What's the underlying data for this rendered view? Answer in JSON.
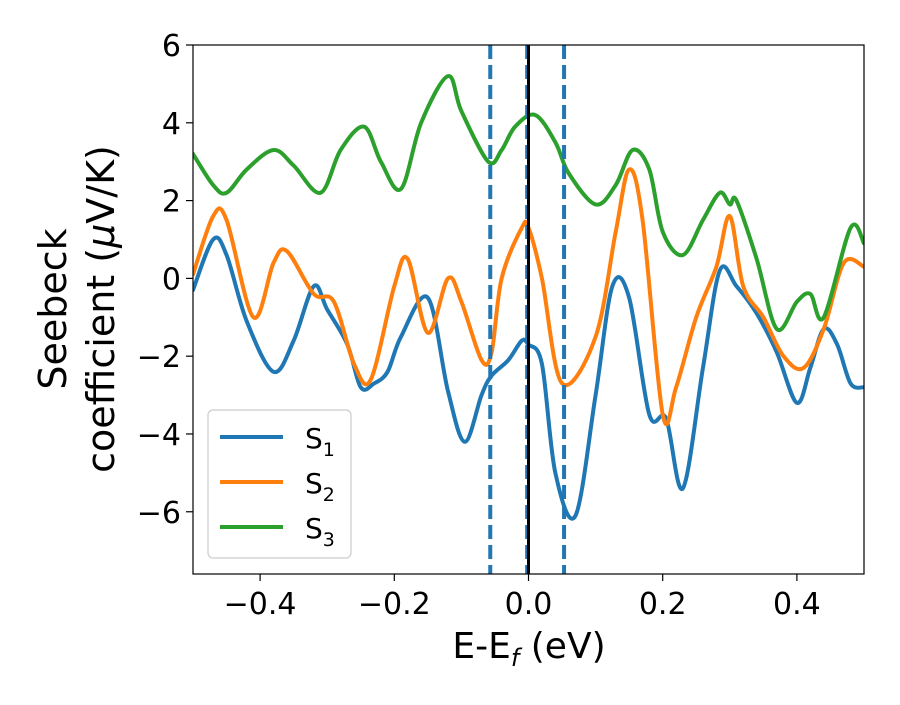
{
  "chart_data": {
    "type": "line",
    "xlabel_main": "E-E",
    "xlabel_sub": "f",
    "xlabel_unit": " (eV)",
    "ylabel_line1": "Seebeck",
    "ylabel_line2": "coefficient  (",
    "ylabel_mu": "μ",
    "ylabel_unit": "V/K)",
    "xlim": [
      -0.5,
      0.5
    ],
    "ylim": [
      -7.6,
      6.0
    ],
    "xticks": [
      -0.4,
      -0.2,
      0.0,
      0.2,
      0.4
    ],
    "xtick_labels": [
      "−0.4",
      "−0.2",
      "0.0",
      "0.2",
      "0.4"
    ],
    "yticks": [
      -6,
      -4,
      -2,
      0,
      2,
      4,
      6
    ],
    "ytick_labels": [
      "−6",
      "−4",
      "−2",
      "0",
      "2",
      "4",
      "6"
    ],
    "grid": false,
    "legend_position": "lower-left",
    "vlines": [
      {
        "x": -0.057,
        "style": "dashed",
        "color": "#1f77b4"
      },
      {
        "x": -0.002,
        "style": "dashed",
        "color": "#1f77b4"
      },
      {
        "x": 0.053,
        "style": "dashed",
        "color": "#1f77b4"
      },
      {
        "x": 0.0,
        "style": "solid",
        "color": "#000000"
      }
    ],
    "series": [
      {
        "name": "S",
        "sub": "1",
        "color": "#1f77b4",
        "x": [
          -0.5,
          -0.47,
          -0.45,
          -0.42,
          -0.38,
          -0.35,
          -0.32,
          -0.3,
          -0.27,
          -0.25,
          -0.23,
          -0.21,
          -0.19,
          -0.15,
          -0.12,
          -0.095,
          -0.07,
          -0.055,
          -0.03,
          -0.01,
          0.0,
          0.02,
          0.04,
          0.07,
          0.1,
          0.125,
          0.15,
          0.18,
          0.205,
          0.23,
          0.26,
          0.285,
          0.31,
          0.34,
          0.37,
          0.4,
          0.42,
          0.44,
          0.46,
          0.48,
          0.5
        ],
        "y": [
          -0.3,
          1.0,
          0.6,
          -1.1,
          -2.4,
          -1.6,
          -0.2,
          -0.8,
          -1.7,
          -2.8,
          -2.7,
          -2.4,
          -1.5,
          -0.5,
          -2.9,
          -4.2,
          -3.0,
          -2.5,
          -2.1,
          -1.6,
          -1.7,
          -2.2,
          -5.0,
          -6.1,
          -3.0,
          -0.2,
          -0.5,
          -3.5,
          -3.6,
          -5.4,
          -2.3,
          0.2,
          -0.2,
          -0.9,
          -1.9,
          -3.2,
          -2.3,
          -1.3,
          -1.7,
          -2.7,
          -2.8
        ]
      },
      {
        "name": "S",
        "sub": "2",
        "color": "#ff7f0e",
        "x": [
          -0.5,
          -0.47,
          -0.45,
          -0.41,
          -0.38,
          -0.36,
          -0.32,
          -0.29,
          -0.26,
          -0.235,
          -0.2,
          -0.18,
          -0.15,
          -0.12,
          -0.1,
          -0.07,
          -0.055,
          -0.04,
          -0.01,
          0.0,
          0.02,
          0.05,
          0.1,
          0.13,
          0.15,
          0.17,
          0.2,
          0.22,
          0.25,
          0.28,
          0.3,
          0.32,
          0.35,
          0.38,
          0.41,
          0.44,
          0.47,
          0.5
        ],
        "y": [
          0.1,
          1.6,
          1.5,
          -1.0,
          0.4,
          0.7,
          -0.4,
          -0.6,
          -2.2,
          -2.6,
          -0.2,
          0.5,
          -1.4,
          0.0,
          -0.6,
          -2.1,
          -1.9,
          0.0,
          1.3,
          1.3,
          0.0,
          -2.7,
          -1.5,
          1.2,
          2.8,
          1.5,
          -3.5,
          -2.8,
          -1.0,
          0.3,
          1.6,
          -0.2,
          -1.0,
          -2.0,
          -2.3,
          -1.3,
          0.4,
          0.3
        ]
      },
      {
        "name": "S",
        "sub": "3",
        "color": "#2ca02c",
        "x": [
          -0.5,
          -0.47,
          -0.45,
          -0.42,
          -0.38,
          -0.35,
          -0.31,
          -0.28,
          -0.245,
          -0.22,
          -0.19,
          -0.16,
          -0.12,
          -0.1,
          -0.06,
          -0.04,
          -0.02,
          0.01,
          0.04,
          0.06,
          0.1,
          0.13,
          0.155,
          0.18,
          0.2,
          0.23,
          0.26,
          0.285,
          0.3,
          0.31,
          0.34,
          0.37,
          0.4,
          0.42,
          0.44,
          0.48,
          0.5
        ],
        "y": [
          3.2,
          2.4,
          2.2,
          2.8,
          3.3,
          2.9,
          2.2,
          3.3,
          3.9,
          3.0,
          2.3,
          4.0,
          5.2,
          4.3,
          3.0,
          3.3,
          3.9,
          4.2,
          3.5,
          2.7,
          1.9,
          2.4,
          3.3,
          2.8,
          1.2,
          0.6,
          1.5,
          2.2,
          1.9,
          2.0,
          0.5,
          -1.3,
          -0.6,
          -0.4,
          -1.0,
          1.3,
          0.9
        ]
      }
    ]
  }
}
